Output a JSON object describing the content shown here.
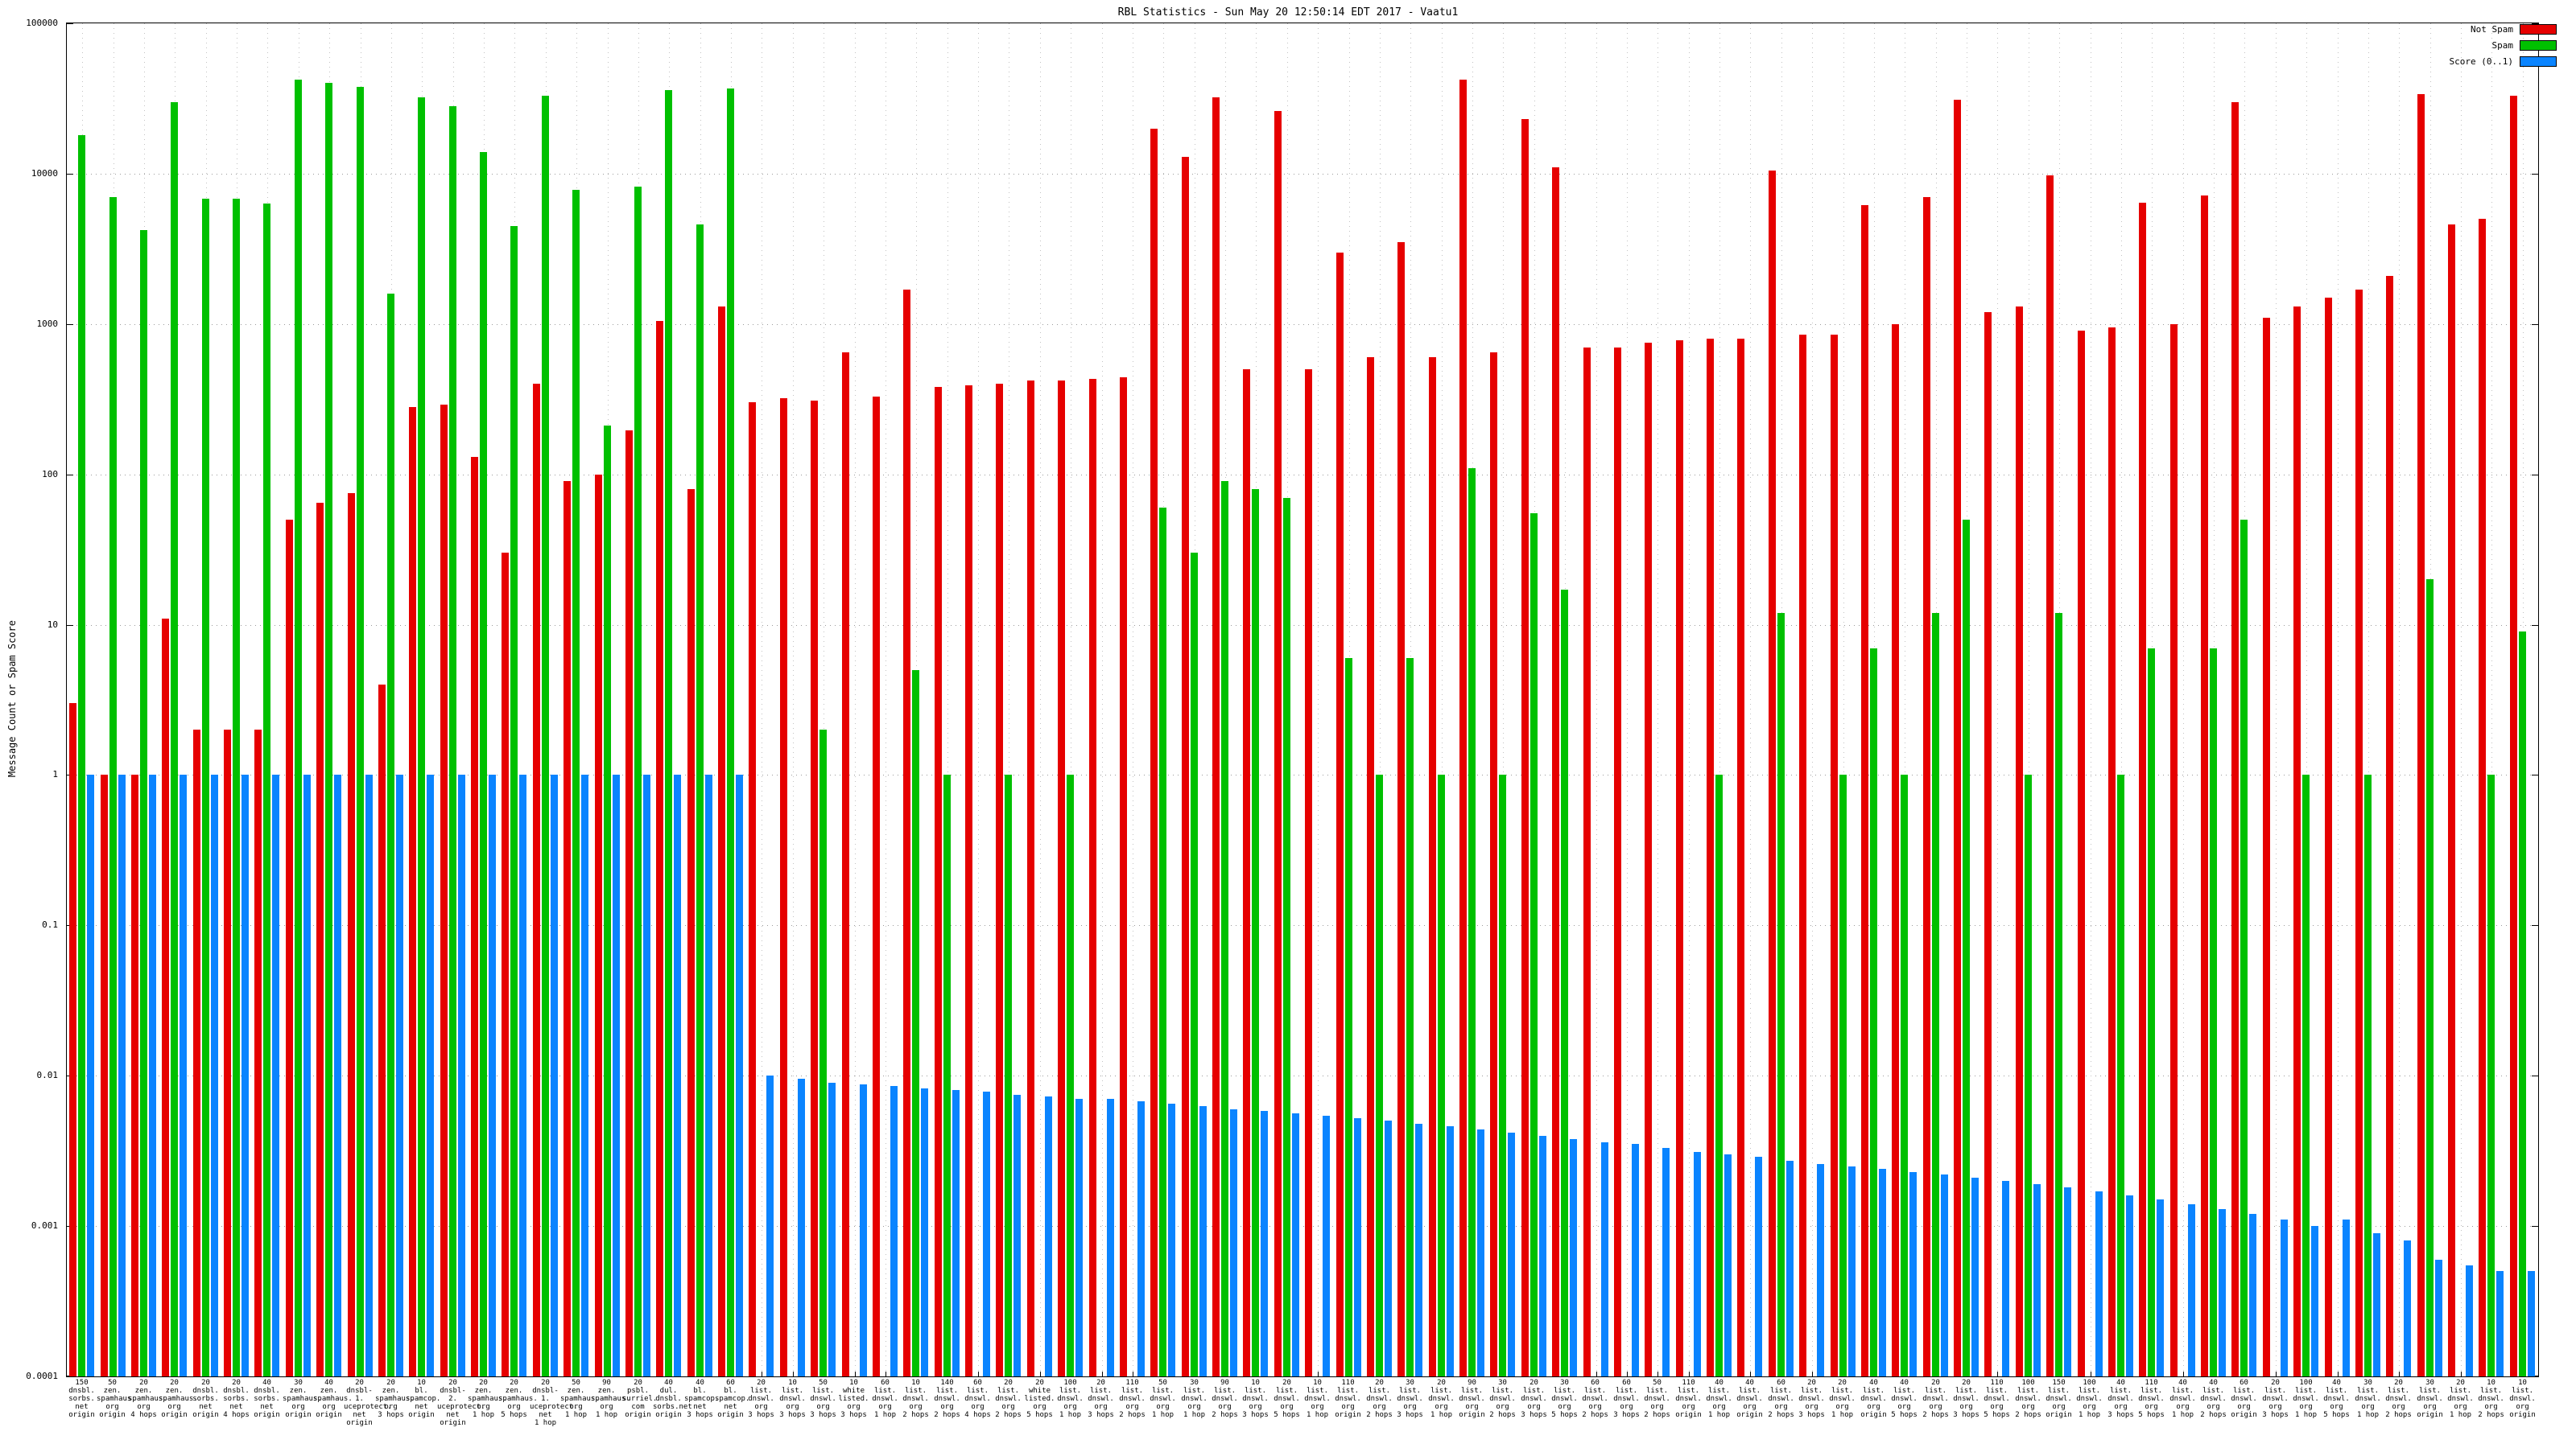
{
  "title": "RBL Statistics - Sun May 20 12:50:14 EDT 2017 - Vaatu1",
  "ylabel": "Message Count or Spam Score",
  "legend": [
    {
      "label": "Not Spam",
      "color": "#e60000"
    },
    {
      "label": "Spam",
      "color": "#00c000"
    },
    {
      "label": "Score (0..1)",
      "color": "#0a84ff"
    }
  ],
  "chart_data": {
    "type": "bar",
    "title": "RBL Statistics - Sun May 20 12:50:14 EDT 2017 - Vaatu1",
    "xlabel": "",
    "ylabel": "Message Count or Spam Score",
    "y_scale": "log",
    "ylim": [
      0.0001,
      100000
    ],
    "grid": true,
    "legend_position": "top-right",
    "yticks": [
      {
        "label": "100000",
        "value": 100000
      },
      {
        "label": "10000",
        "value": 10000
      },
      {
        "label": "1000",
        "value": 1000
      },
      {
        "label": "100",
        "value": 100
      },
      {
        "label": "10",
        "value": 10
      },
      {
        "label": "1",
        "value": 1
      },
      {
        "label": "0.1",
        "value": 0.1
      },
      {
        "label": "0.01",
        "value": 0.01
      },
      {
        "label": "0.001",
        "value": 0.001
      },
      {
        "label": "0.0001",
        "value": 0.0001
      }
    ],
    "categories": [
      [
        "150",
        "dnsbl.",
        "sorbs.",
        "net",
        "origin"
      ],
      [
        "50",
        "zen.",
        "spamhaus.",
        "org",
        "origin"
      ],
      [
        "20",
        "zen.",
        "spamhaus.",
        "org",
        "4 hops"
      ],
      [
        "20",
        "zen.",
        "spamhaus.",
        "org",
        "origin"
      ],
      [
        "20",
        "dnsbl.",
        "sorbs.",
        "net",
        "origin"
      ],
      [
        "20",
        "dnsbl.",
        "sorbs.",
        "net",
        "4 hops"
      ],
      [
        "40",
        "dnsbl.",
        "sorbs.",
        "net",
        "origin"
      ],
      [
        "30",
        "zen.",
        "spamhaus.",
        "org",
        "origin"
      ],
      [
        "40",
        "zen.",
        "spamhaus.",
        "org",
        "origin"
      ],
      [
        "20",
        "dnsbl-1.",
        "uceprotect.",
        "net",
        "origin"
      ],
      [
        "20",
        "zen.",
        "spamhaus.",
        "org",
        "3 hops"
      ],
      [
        "10",
        "bl.",
        "spamcop.",
        "net",
        "origin"
      ],
      [
        "20",
        "dnsbl-2.",
        "uceprotect.",
        "net",
        "origin"
      ],
      [
        "20",
        "zen.",
        "spamhaus.",
        "org",
        "1 hop"
      ],
      [
        "20",
        "zen.",
        "spamhaus.",
        "org",
        "5 hops"
      ],
      [
        "20",
        "dnsbl-1.",
        "uceprotect.",
        "net",
        "1 hop"
      ],
      [
        "50",
        "zen.",
        "spamhaus.",
        "org",
        "1 hop"
      ],
      [
        "90",
        "zen.",
        "spamhaus.",
        "org",
        "1 hop"
      ],
      [
        "20",
        "psbl.",
        "surriel.",
        "com",
        "origin"
      ],
      [
        "40",
        "dul.",
        "dnsbl.",
        "sorbs.net",
        "origin"
      ],
      [
        "40",
        "bl.",
        "spamcop.",
        "net",
        "3 hops"
      ],
      [
        "60",
        "bl.",
        "spamcop.",
        "net",
        "origin"
      ],
      [
        "20",
        "list.",
        "dnswl.",
        "org",
        "3 hops"
      ],
      [
        "10",
        "list.",
        "dnswl.",
        "org",
        "3 hops"
      ],
      [
        "50",
        "list.",
        "dnswl.",
        "org",
        "3 hops"
      ],
      [
        "10",
        "white",
        "listed.",
        "org",
        "3 hops"
      ],
      [
        "60",
        "list.",
        "dnswl.",
        "org",
        "1 hop"
      ],
      [
        "10",
        "list.",
        "dnswl.",
        "org",
        "2 hops"
      ],
      [
        "140",
        "list.",
        "dnswl.",
        "org",
        "2 hops"
      ],
      [
        "60",
        "list.",
        "dnswl.",
        "org",
        "4 hops"
      ],
      [
        "20",
        "list.",
        "dnswl.",
        "org",
        "2 hops"
      ],
      [
        "20",
        "white",
        "listed.",
        "org",
        "5 hops"
      ],
      [
        "100",
        "list.",
        "dnswl.",
        "org",
        "1 hop"
      ],
      [
        "20",
        "list.",
        "dnswl.",
        "org",
        "3 hops"
      ],
      [
        "110",
        "list.",
        "dnswl.",
        "org",
        "2 hops"
      ],
      [
        "50",
        "list.",
        "dnswl.",
        "org",
        "1 hop"
      ],
      [
        "30",
        "list.",
        "dnswl.",
        "org",
        "1 hop"
      ],
      [
        "90",
        "list.",
        "dnswl.",
        "org",
        "2 hops"
      ],
      [
        "10",
        "list.",
        "dnswl.",
        "org",
        "3 hops"
      ],
      [
        "20",
        "list.",
        "dnswl.",
        "org",
        "5 hops"
      ],
      [
        "10",
        "list.",
        "dnswl.",
        "org",
        "1 hop"
      ],
      [
        "110",
        "list.",
        "dnswl.",
        "org",
        "origin"
      ],
      [
        "20",
        "list.",
        "dnswl.",
        "org",
        "2 hops"
      ],
      [
        "30",
        "list.",
        "dnswl.",
        "org",
        "3 hops"
      ],
      [
        "20",
        "list.",
        "dnswl.",
        "org",
        "1 hop"
      ],
      [
        "90",
        "list.",
        "dnswl.",
        "org",
        "origin"
      ],
      [
        "30",
        "list.",
        "dnswl.",
        "org",
        "2 hops"
      ],
      [
        "20",
        "list.",
        "dnswl.",
        "org",
        "3 hops"
      ],
      [
        "30",
        "list.",
        "dnswl.",
        "org",
        "5 hops"
      ],
      [
        "60",
        "list.",
        "dnswl.",
        "org",
        "2 hops"
      ],
      [
        "60",
        "list.",
        "dnswl.",
        "org",
        "3 hops"
      ],
      [
        "50",
        "list.",
        "dnswl.",
        "org",
        "2 hops"
      ],
      [
        "110",
        "list.",
        "dnswl.",
        "org",
        "origin"
      ],
      [
        "40",
        "list.",
        "dnswl.",
        "org",
        "1 hop"
      ],
      [
        "40",
        "list.",
        "dnswl.",
        "org",
        "origin"
      ],
      [
        "60",
        "list.",
        "dnswl.",
        "org",
        "2 hops"
      ],
      [
        "20",
        "list.",
        "dnswl.",
        "org",
        "3 hops"
      ],
      [
        "20",
        "list.",
        "dnswl.",
        "org",
        "1 hop"
      ],
      [
        "40",
        "list.",
        "dnswl.",
        "org",
        "origin"
      ],
      [
        "40",
        "list.",
        "dnswl.",
        "org",
        "5 hops"
      ],
      [
        "20",
        "list.",
        "dnswl.",
        "org",
        "2 hops"
      ],
      [
        "20",
        "list.",
        "dnswl.",
        "org",
        "3 hops"
      ],
      [
        "110",
        "list.",
        "dnswl.",
        "org",
        "5 hops"
      ],
      [
        "100",
        "list.",
        "dnswl.",
        "org",
        "2 hops"
      ],
      [
        "150",
        "list.",
        "dnswl.",
        "org",
        "origin"
      ],
      [
        "100",
        "list.",
        "dnswl.",
        "org",
        "1 hop"
      ],
      [
        "40",
        "list.",
        "dnswl.",
        "org",
        "3 hops"
      ],
      [
        "110",
        "list.",
        "dnswl.",
        "org",
        "5 hops"
      ],
      [
        "40",
        "list.",
        "dnswl.",
        "org",
        "1 hop"
      ],
      [
        "40",
        "list.",
        "dnswl.",
        "org",
        "2 hops"
      ],
      [
        "60",
        "list.",
        "dnswl.",
        "org",
        "origin"
      ],
      [
        "20",
        "list.",
        "dnswl.",
        "org",
        "3 hops"
      ],
      [
        "100",
        "list.",
        "dnswl.",
        "org",
        "1 hop"
      ],
      [
        "40",
        "list.",
        "dnswl.",
        "org",
        "5 hops"
      ],
      [
        "30",
        "list.",
        "dnswl.",
        "org",
        "1 hop"
      ],
      [
        "20",
        "list.",
        "dnswl.",
        "org",
        "2 hops"
      ],
      [
        "30",
        "list.",
        "dnswl.",
        "org",
        "origin"
      ],
      [
        "20",
        "list.",
        "dnswl.",
        "org",
        "1 hop"
      ],
      [
        "10",
        "list.",
        "dnswl.",
        "org",
        "2 hops"
      ],
      [
        "10",
        "list.",
        "dnswl.",
        "org",
        "origin"
      ]
    ],
    "series": [
      {
        "name": "Not Spam",
        "color": "#e60000",
        "values": [
          3,
          1,
          1,
          11,
          2,
          2,
          2,
          50,
          65,
          75,
          4,
          280,
          290,
          130,
          30,
          400,
          90,
          100,
          195,
          1050,
          80,
          1300,
          300,
          320,
          310,
          650,
          330,
          1700,
          380,
          390,
          400,
          420,
          420,
          430,
          440,
          20000,
          13000,
          32000,
          500,
          26000,
          500,
          3000,
          600,
          3500,
          600,
          42000,
          650,
          23000,
          11000,
          700,
          700,
          750,
          780,
          800,
          800,
          10500,
          850,
          850,
          6200,
          1000,
          7000,
          31000,
          1200,
          1300,
          9800,
          900,
          950,
          6400,
          1000,
          7200,
          30000,
          1100,
          1300,
          1500,
          1700,
          2100,
          34000,
          4600,
          5000,
          33000
        ]
      },
      {
        "name": "Spam",
        "color": "#00c000",
        "values": [
          18000,
          7000,
          4200,
          30000,
          6800,
          6800,
          6300,
          42000,
          40000,
          38000,
          1600,
          32000,
          28000,
          14000,
          4500,
          33000,
          7800,
          210,
          8200,
          36000,
          4600,
          37000,
          0,
          0,
          2,
          0,
          0,
          5,
          1,
          0,
          1,
          0,
          1,
          0,
          0,
          60,
          30,
          90,
          80,
          70,
          0,
          6,
          1,
          6,
          1,
          110,
          1,
          55,
          17,
          0,
          0,
          0,
          0,
          1,
          0,
          12,
          0,
          1,
          7,
          1,
          12,
          50,
          0,
          1,
          12,
          0,
          1,
          7,
          0,
          7,
          50,
          0,
          1,
          0,
          1,
          0,
          20,
          0,
          1,
          9
        ]
      },
      {
        "name": "Score (0..1)",
        "color": "#0a84ff",
        "values": [
          1,
          1,
          1,
          1,
          1,
          1,
          1,
          1,
          1,
          1,
          1,
          1,
          1,
          1,
          1,
          1,
          1,
          1,
          1,
          1,
          1,
          1,
          0.01,
          0.0095,
          0.009,
          0.0088,
          0.0085,
          0.0082,
          0.008,
          0.0078,
          0.0075,
          0.0073,
          0.007,
          0.007,
          0.0068,
          0.0065,
          0.0063,
          0.006,
          0.0058,
          0.0056,
          0.0054,
          0.0052,
          0.005,
          0.0048,
          0.0046,
          0.0044,
          0.0042,
          0.004,
          0.0038,
          0.0036,
          0.0035,
          0.0033,
          0.0031,
          0.003,
          0.0029,
          0.0027,
          0.0026,
          0.0025,
          0.0024,
          0.0023,
          0.0022,
          0.0021,
          0.002,
          0.0019,
          0.0018,
          0.0017,
          0.0016,
          0.0015,
          0.0014,
          0.0013,
          0.0012,
          0.0011,
          0.001,
          0.0011,
          0.0009,
          0.0008,
          0.0006,
          0.00055,
          0.0005,
          0.0005
        ]
      }
    ]
  }
}
